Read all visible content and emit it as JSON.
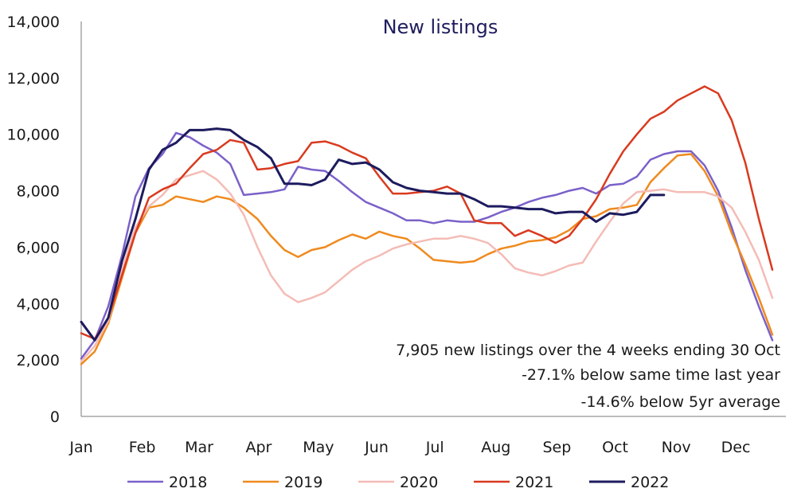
{
  "chart_data": {
    "type": "line",
    "title": "New listings",
    "xlabel": "",
    "ylabel": "",
    "ylim": [
      0,
      14000
    ],
    "yticks": [
      0,
      2000,
      4000,
      6000,
      8000,
      10000,
      12000,
      14000
    ],
    "ytick_labels": [
      "0",
      "2,000",
      "4,000",
      "6,000",
      "8,000",
      "10,000",
      "12,000",
      "14,000"
    ],
    "xlim": [
      0,
      52
    ],
    "month_labels": [
      "Jan",
      "Feb",
      "Mar",
      "Apr",
      "May",
      "Jun",
      "Jul",
      "Aug",
      "Sep",
      "Oct",
      "Nov",
      "Dec"
    ],
    "month_positions": [
      0,
      4.5,
      8.7,
      13.1,
      17.5,
      21.8,
      26.1,
      30.6,
      35.1,
      39.4,
      43.9,
      48.3
    ],
    "grid": false,
    "legend_position": "bottom",
    "annotations": [
      "7,905 new listings over the 4 weeks ending 30 Oct",
      "-27.1% below same time last year",
      "-14.6% below 5yr average"
    ],
    "series": [
      {
        "name": "2018",
        "color": "#7b61c9",
        "width": 2.5,
        "values": [
          2050,
          2700,
          3900,
          5700,
          7800,
          8800,
          9300,
          10050,
          9900,
          9600,
          9350,
          8950,
          7850,
          7900,
          7950,
          8050,
          8850,
          8750,
          8700,
          8350,
          7950,
          7600,
          7400,
          7200,
          6950,
          6950,
          6850,
          6950,
          6900,
          6900,
          7050,
          7250,
          7400,
          7600,
          7750,
          7850,
          8000,
          8100,
          7900,
          8200,
          8250,
          8500,
          9100,
          9300,
          9400,
          9400,
          8900,
          8000,
          6700,
          5200,
          3900,
          2700
        ]
      },
      {
        "name": "2019",
        "color": "#ef8a1e",
        "width": 2.5,
        "values": [
          1850,
          2300,
          3300,
          4900,
          6500,
          7400,
          7500,
          7800,
          7700,
          7600,
          7800,
          7700,
          7400,
          7000,
          6400,
          5900,
          5650,
          5900,
          6000,
          6250,
          6450,
          6300,
          6550,
          6400,
          6300,
          5950,
          5550,
          5500,
          5450,
          5500,
          5750,
          5950,
          6050,
          6200,
          6250,
          6350,
          6600,
          7000,
          7100,
          7350,
          7400,
          7500,
          8300,
          8800,
          9250,
          9300,
          8700,
          7800,
          6500,
          5400,
          4200,
          2900
        ]
      },
      {
        "name": "2020",
        "color": "#f4bcb6",
        "width": 2.5,
        "values": [
          1950,
          2500,
          3400,
          5200,
          6700,
          7450,
          7850,
          8400,
          8550,
          8700,
          8400,
          7900,
          7150,
          6000,
          5000,
          4350,
          4050,
          4200,
          4400,
          4800,
          5200,
          5500,
          5700,
          5950,
          6100,
          6200,
          6300,
          6300,
          6400,
          6300,
          6150,
          5750,
          5250,
          5100,
          5000,
          5150,
          5350,
          5450,
          6200,
          6900,
          7550,
          7950,
          8000,
          8050,
          7950,
          7950,
          7950,
          7800,
          7400,
          6550,
          5550,
          4200
        ]
      },
      {
        "name": "2021",
        "color": "#d93a1f",
        "width": 2.5,
        "values": [
          2950,
          2750,
          3500,
          5000,
          6500,
          7750,
          8050,
          8250,
          8800,
          9300,
          9450,
          9800,
          9700,
          8750,
          8800,
          8950,
          9050,
          9700,
          9750,
          9600,
          9350,
          9150,
          8500,
          7900,
          7900,
          7950,
          8000,
          8150,
          7900,
          6950,
          6850,
          6850,
          6400,
          6600,
          6400,
          6150,
          6400,
          7000,
          7700,
          8600,
          9400,
          10000,
          10550,
          10800,
          11200,
          11450,
          11700,
          11450,
          10500,
          9000,
          7000,
          5200
        ]
      },
      {
        "name": "2022",
        "color": "#1d1b5e",
        "width": 3,
        "values": [
          3350,
          2700,
          3500,
          5500,
          7000,
          8750,
          9450,
          9700,
          10150,
          10150,
          10200,
          10150,
          9800,
          9550,
          9150,
          8250,
          8250,
          8200,
          8400,
          9100,
          8950,
          9000,
          8750,
          8300,
          8100,
          8000,
          7950,
          7900,
          7900,
          7700,
          7450,
          7450,
          7400,
          7350,
          7350,
          7200,
          7250,
          7250,
          6900,
          7200,
          7150,
          7250,
          7850,
          7850
        ]
      }
    ]
  }
}
